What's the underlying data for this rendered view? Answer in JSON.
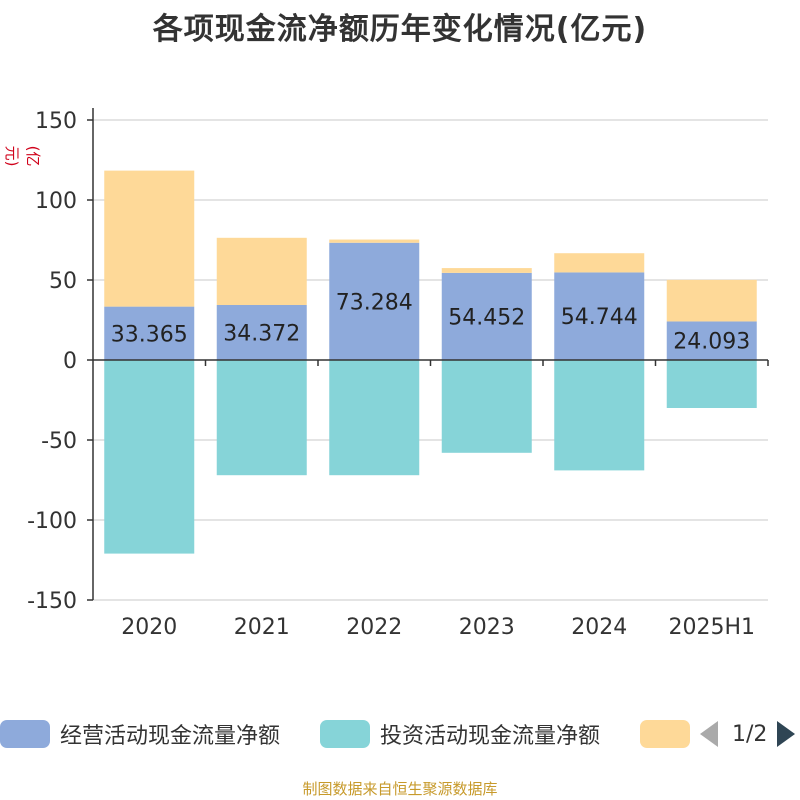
{
  "title": "各项现金流净额历年变化情况(亿元)",
  "unit_label": "(亿元)",
  "footer": "制图数据来自恒生聚源数据库",
  "legend": {
    "items": [
      {
        "label": "经营活动现金流量净额",
        "color": "#8eaadb"
      },
      {
        "label": "投资活动现金流量净额",
        "color": "#86d4d8"
      },
      {
        "label": "",
        "color": "#fed998"
      }
    ],
    "page": "1/2"
  },
  "chart_data": {
    "type": "bar",
    "stacked": true,
    "categories": [
      "2020",
      "2021",
      "2022",
      "2023",
      "2024",
      "2025H1"
    ],
    "ylim": [
      -150,
      150
    ],
    "yticks": [
      150,
      100,
      50,
      0,
      -50,
      -100,
      -150
    ],
    "grid": true,
    "legend_position": "bottom",
    "series": [
      {
        "name": "经营活动现金流量净额",
        "color": "#8eaadb",
        "values": [
          33.365,
          34.372,
          73.284,
          54.452,
          54.744,
          24.093
        ],
        "labels": [
          "33.365",
          "34.372",
          "73.284",
          "54.452",
          "54.744",
          "24.093"
        ]
      },
      {
        "name": "投资活动现金流量净额",
        "color": "#86d4d8",
        "values": [
          -121,
          -72,
          -72,
          -58,
          -69,
          -30
        ]
      },
      {
        "color": "#fed998",
        "values": [
          85,
          42,
          2,
          3,
          12,
          26
        ]
      }
    ]
  }
}
